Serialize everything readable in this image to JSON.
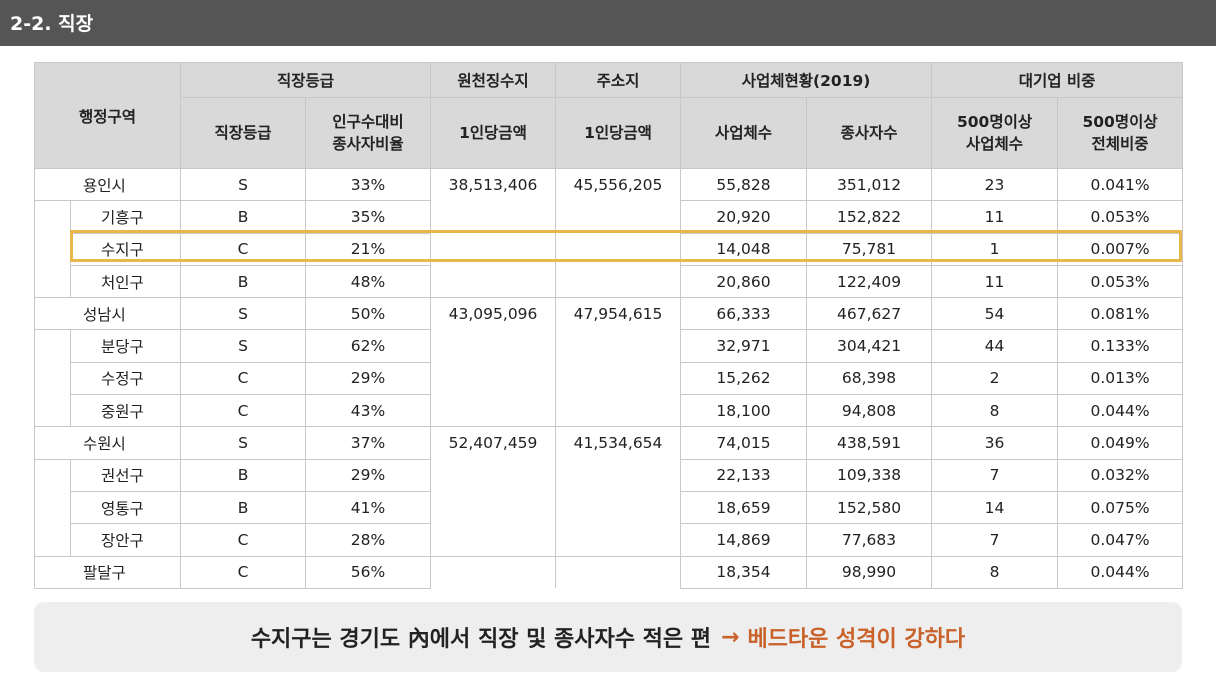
{
  "header": {
    "title": "2-2. 직장"
  },
  "table": {
    "group_headers": {
      "region": "행정구역",
      "grade": "직장등급",
      "withholding": "원천징수지",
      "address": "주소지",
      "business": "사업체현황(2019)",
      "large": "대기업 비중"
    },
    "sub_headers": {
      "grade": "직장등급",
      "ratio_l1": "인구수대비",
      "ratio_l2": "종사자비율",
      "withholding_per": "1인당금액",
      "address_per": "1인당금액",
      "biz_count": "사업체수",
      "worker_count": "종사자수",
      "large_count_l1": "500명이상",
      "large_count_l2": "사업체수",
      "large_share_l1": "500명이상",
      "large_share_l2": "전체비중"
    },
    "rows": [
      [
        "용인시",
        "S",
        "33%",
        "38,513,406",
        "45,556,205",
        "55,828",
        "351,012",
        "23",
        "0.041%"
      ],
      [
        "기흥구",
        "B",
        "35%",
        "",
        "",
        "20,920",
        "152,822",
        "11",
        "0.053%"
      ],
      [
        "수지구",
        "C",
        "21%",
        "",
        "",
        "14,048",
        "75,781",
        "1",
        "0.007%"
      ],
      [
        "처인구",
        "B",
        "48%",
        "",
        "",
        "20,860",
        "122,409",
        "11",
        "0.053%"
      ],
      [
        "성남시",
        "S",
        "50%",
        "43,095,096",
        "47,954,615",
        "66,333",
        "467,627",
        "54",
        "0.081%"
      ],
      [
        "분당구",
        "S",
        "62%",
        "",
        "",
        "32,971",
        "304,421",
        "44",
        "0.133%"
      ],
      [
        "수정구",
        "C",
        "29%",
        "",
        "",
        "15,262",
        "68,398",
        "2",
        "0.013%"
      ],
      [
        "중원구",
        "C",
        "43%",
        "",
        "",
        "18,100",
        "94,808",
        "8",
        "0.044%"
      ],
      [
        "수원시",
        "S",
        "37%",
        "52,407,459",
        "41,534,654",
        "74,015",
        "438,591",
        "36",
        "0.049%"
      ],
      [
        "권선구",
        "B",
        "29%",
        "",
        "",
        "22,133",
        "109,338",
        "7",
        "0.032%"
      ],
      [
        "영통구",
        "B",
        "41%",
        "",
        "",
        "18,659",
        "152,580",
        "14",
        "0.075%"
      ],
      [
        "장안구",
        "C",
        "28%",
        "",
        "",
        "14,869",
        "77,683",
        "7",
        "0.047%"
      ],
      [
        "팔달구",
        "C",
        "56%",
        "",
        "",
        "18,354",
        "98,990",
        "8",
        "0.044%"
      ]
    ]
  },
  "footer": {
    "statement": "수지구는 경기도 內에서 직장 및 종사자수 적은 편",
    "arrow": "→",
    "conclusion": "베드타운 성격이 강하다"
  },
  "colors": {
    "header_bg": "#555555",
    "highlight": "#e8b84a",
    "accent": "#c9622a"
  }
}
